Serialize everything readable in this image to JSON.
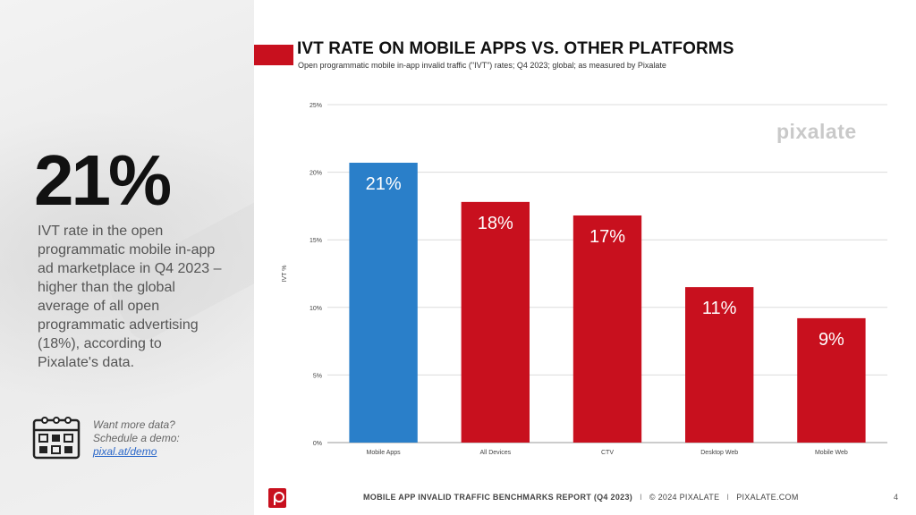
{
  "sidebar": {
    "big_stat": "21%",
    "description": "IVT rate in the open programmatic mobile in-app ad marketplace in Q4 2023 – higher than the global average of all open programmatic advertising (18%), according to Pixalate's data.",
    "demo_line1": "Want more data?",
    "demo_line2": "Schedule a demo:",
    "demo_link": "pixal.at/demo"
  },
  "header": {
    "title": "IVT RATE ON MOBILE APPS VS. OTHER PLATFORMS",
    "subtitle": "Open programmatic mobile in-app invalid traffic (\"IVT\") rates; Q4 2023; global; as measured by Pixalate"
  },
  "watermark": "pixalate",
  "footer": {
    "report": "MOBILE APP INVALID TRAFFIC BENCHMARKS REPORT (Q4 2023)",
    "sep": "I",
    "copyright": "© 2024 PIXALATE",
    "site": "PIXALATE.COM",
    "page": "4"
  },
  "colors": {
    "accent_red": "#c8101e",
    "highlight_blue": "#2a7fc9"
  },
  "chart_data": {
    "type": "bar",
    "title": "IVT RATE ON MOBILE APPS VS. OTHER PLATFORMS",
    "xlabel": "",
    "ylabel": "IVT %",
    "categories": [
      "Mobile Apps",
      "All Devices",
      "CTV",
      "Desktop Web",
      "Mobile Web"
    ],
    "values": [
      20.7,
      17.8,
      16.8,
      11.5,
      9.2
    ],
    "data_labels": [
      "21%",
      "18%",
      "17%",
      "11%",
      "9%"
    ],
    "bar_colors": [
      "#2a7fc9",
      "#c8101e",
      "#c8101e",
      "#c8101e",
      "#c8101e"
    ],
    "ylim": [
      0,
      25
    ],
    "yticks": [
      0,
      5,
      10,
      15,
      20,
      25
    ],
    "ytick_labels": [
      "0%",
      "5%",
      "10%",
      "15%",
      "20%",
      "25%"
    ],
    "grid": true,
    "legend": "none"
  }
}
